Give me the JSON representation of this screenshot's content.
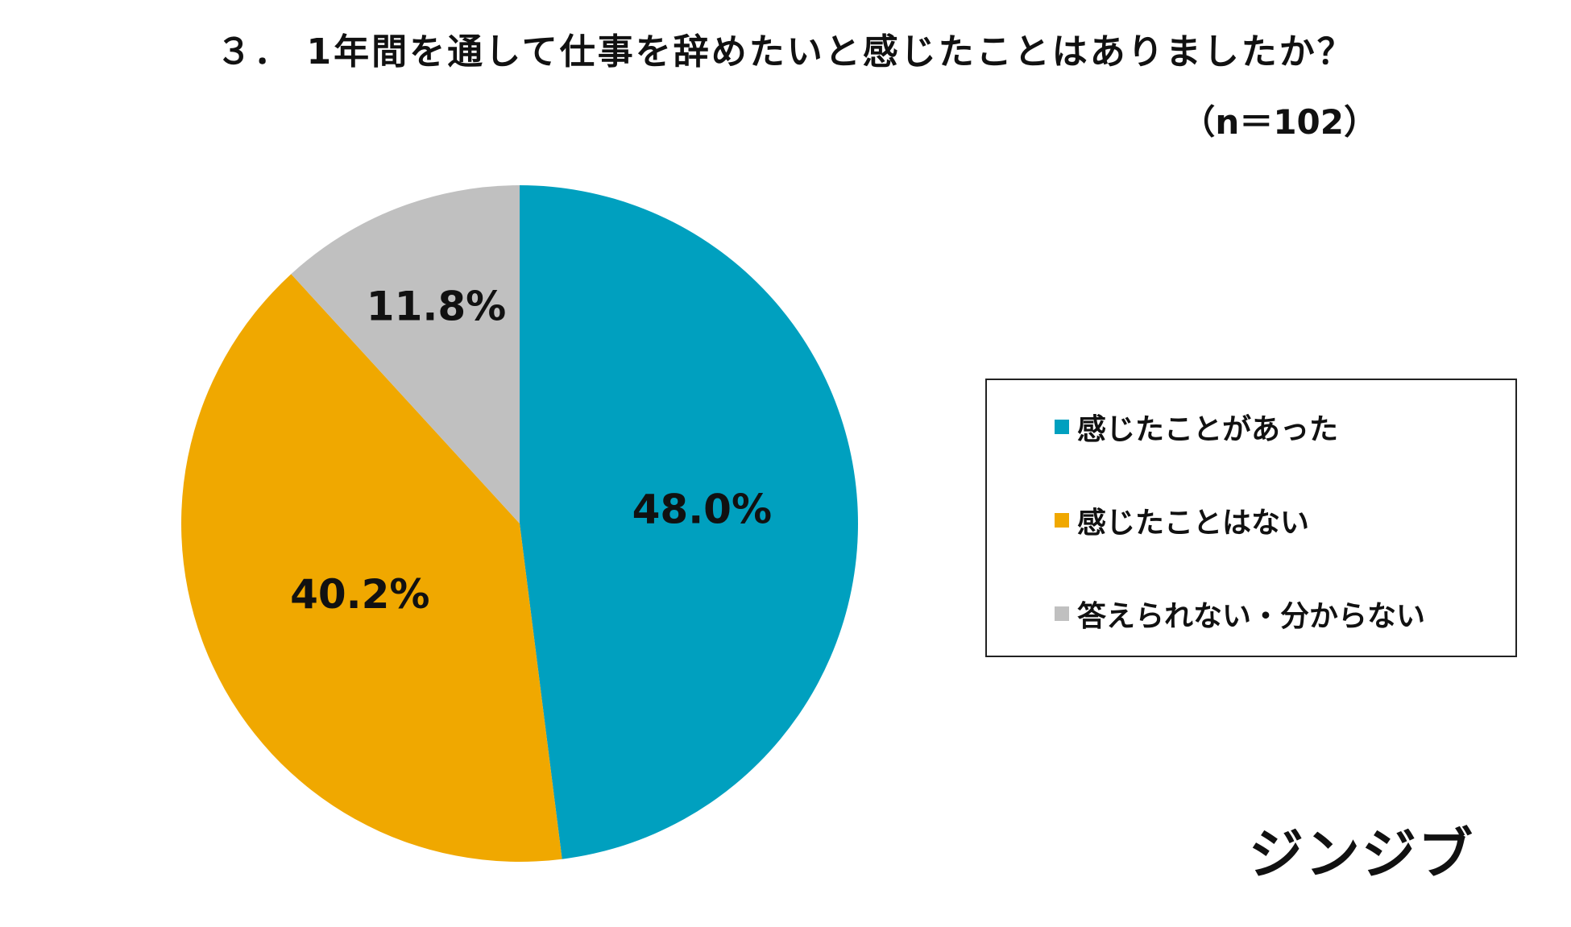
{
  "header": {
    "title": "３． 1年間を通して仕事を辞めたいと感じたことはありましたか？",
    "sample_size": "（n＝102）"
  },
  "chart_data": {
    "type": "pie",
    "categories": [
      "感じたことがあった",
      "感じたことはない",
      "答えられない・分からない"
    ],
    "values": [
      48.0,
      40.2,
      11.8
    ],
    "labels": [
      "48.0%",
      "40.2%",
      "11.8%"
    ],
    "colors": [
      "#00A0BF",
      "#F0A800",
      "#C0C0C0"
    ],
    "start_angle": "12 o'clock",
    "direction": "clockwise",
    "legend_position": "right"
  },
  "legend": {
    "items": [
      {
        "label": "感じたことがあった",
        "color": "#00A0BF"
      },
      {
        "label": "感じたことはない",
        "color": "#F0A800"
      },
      {
        "label": "答えられない・分からない",
        "color": "#C0C0C0"
      }
    ]
  },
  "brand": {
    "logo_text": "ジンジブ"
  }
}
